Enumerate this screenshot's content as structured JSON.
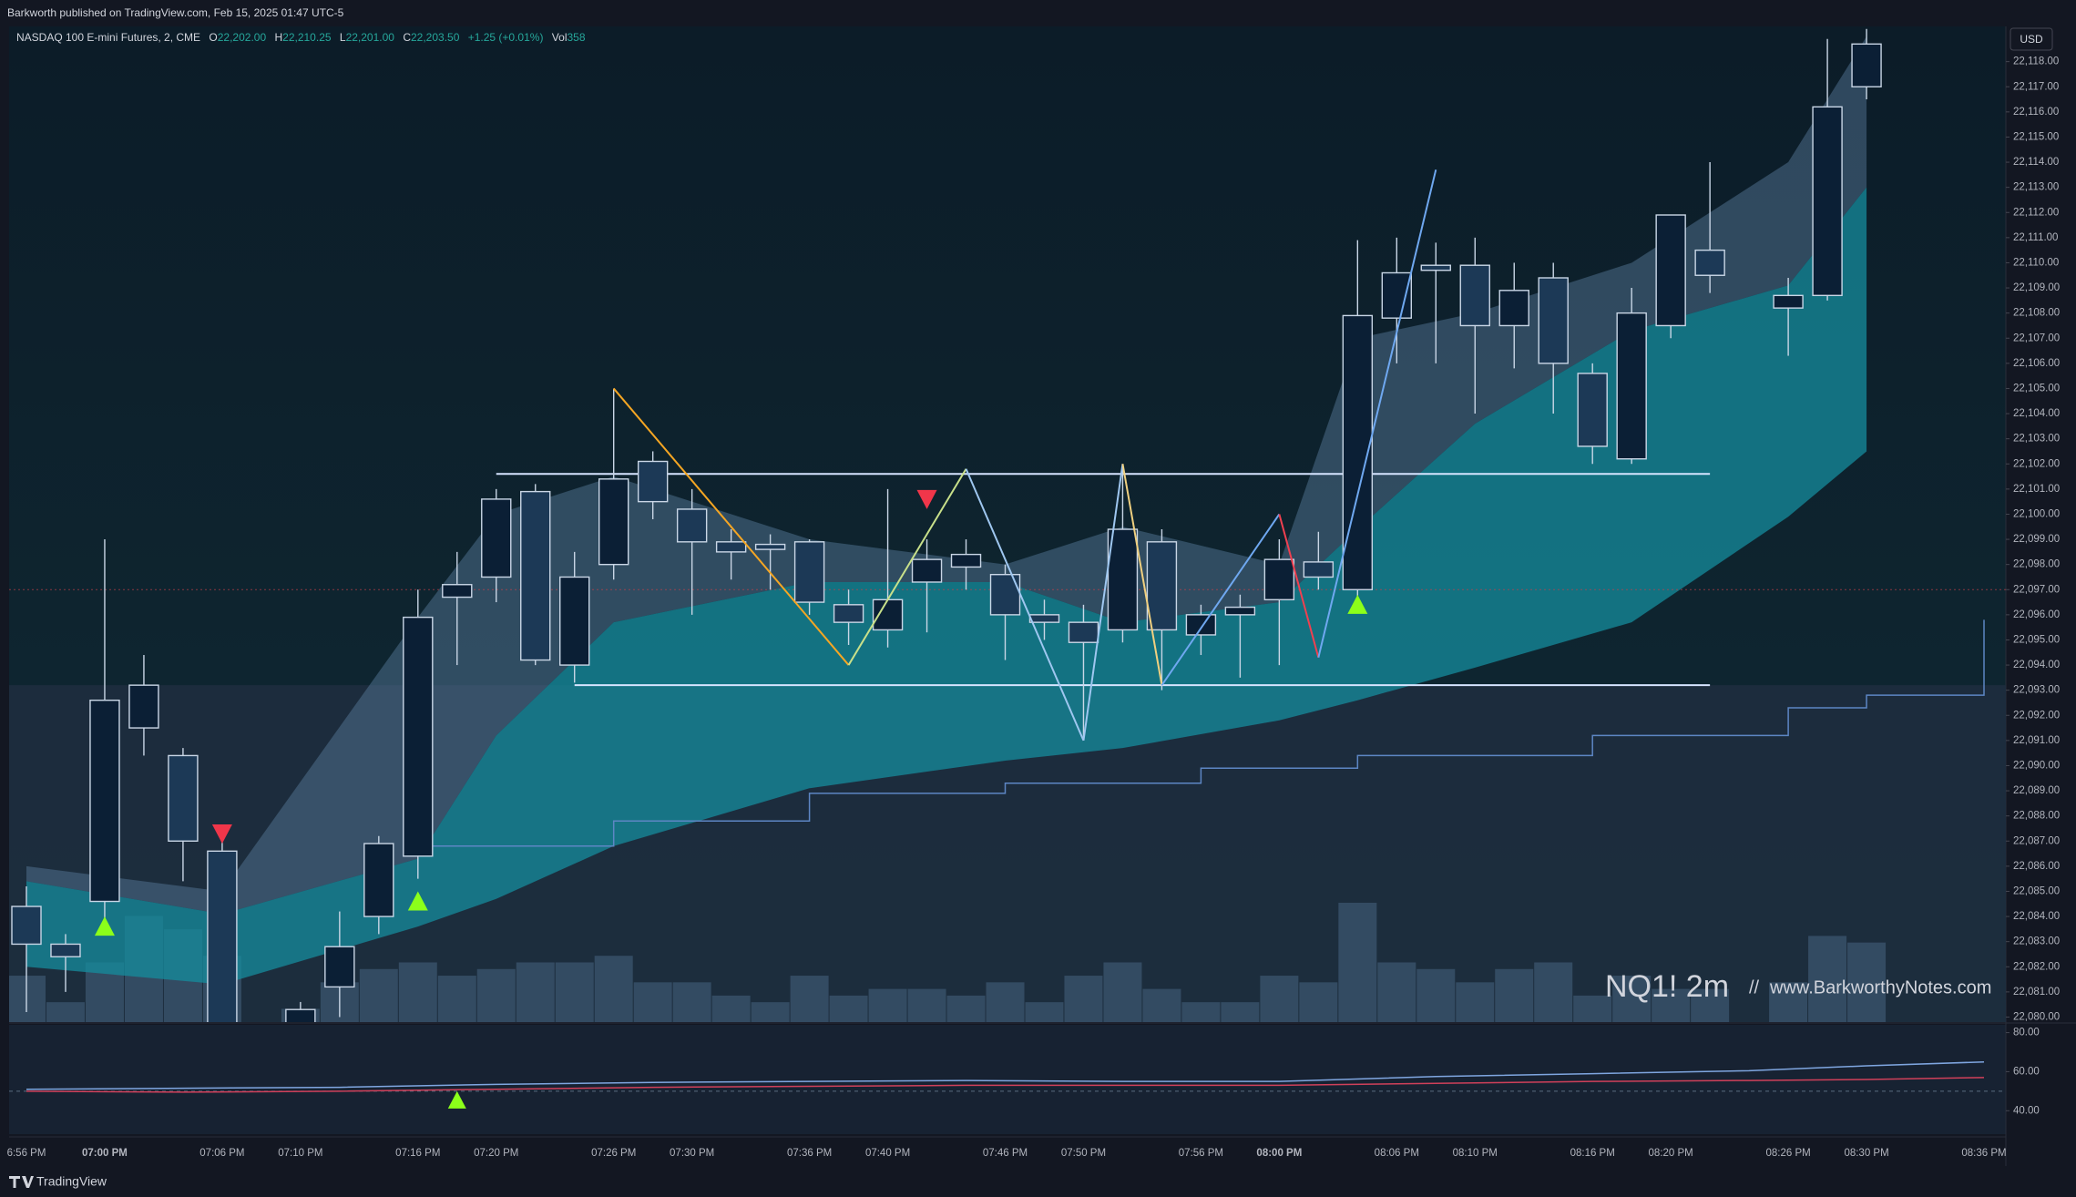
{
  "header": {
    "publisher": "Barkworth published on TradingView.com, Feb 15, 2025 01:47 UTC-5",
    "footer": "TradingView"
  },
  "chart_data": {
    "type": "candlestick",
    "symbol": "NASDAQ 100 E-mini Futures, 2, CME",
    "ohlc": [
      {
        "key": "O",
        "value": "22,202.00"
      },
      {
        "key": "H",
        "value": "22,210.25"
      },
      {
        "key": "L",
        "value": "22,201.00"
      },
      {
        "key": "C",
        "value": "22,203.50"
      }
    ],
    "change": "+1.25 (+0.01%)",
    "vol_key": "Vol",
    "vol_value": "358",
    "currency": "USD",
    "watermark": "NQ1! 2m",
    "separator": "//",
    "website": "www.BarkworthyNotes.com",
    "categories": [
      "6:56 PM",
      null,
      "07:00 PM",
      null,
      null,
      "07:06 PM",
      null,
      "07:10 PM",
      null,
      null,
      "07:16 PM",
      null,
      "07:20 PM",
      null,
      null,
      "07:26 PM",
      null,
      "07:30 PM",
      null,
      null,
      "07:36 PM",
      null,
      "07:40 PM",
      null,
      null,
      "07:46 PM",
      null,
      "07:50 PM",
      null,
      null,
      "07:56 PM",
      null,
      "08:00 PM",
      null,
      null,
      "08:06 PM",
      null,
      "08:10 PM",
      null,
      null,
      "08:16 PM",
      null,
      "08:20 PM",
      null,
      null,
      "08:26 PM",
      null,
      "08:30 PM",
      null,
      null,
      "08:36 PM"
    ],
    "open": [
      22084.4,
      22082.9,
      22084.6,
      22091.5,
      22090.4,
      22086.6,
      null,
      22079,
      22081.2,
      22084.0,
      22086.4,
      22096.7,
      22097.5,
      22100.9,
      22094.0,
      22098.0,
      22102.1,
      22100.2,
      22098.9,
      22098.8,
      22098.9,
      22096.4,
      22095.4,
      22097.3,
      22097.9,
      22097.6,
      22096.0,
      22095.7,
      22095.4,
      22098.9,
      22095.2,
      22096.0,
      22096.6,
      22098.1,
      22097.0,
      22107.8,
      22109.9,
      22109.9,
      22107.5,
      22109.4,
      22105.6,
      22102.2,
      22107.5,
      22110.5,
      null,
      22108.2,
      22108.7,
      22117.0,
      null,
      null,
      null
    ],
    "high": [
      22085.2,
      22083.3,
      22099.0,
      22094.4,
      22090.7,
      22087.6,
      null,
      22080.6,
      22084.2,
      22087.2,
      22097.0,
      22098.5,
      22101.0,
      22101.2,
      22098.5,
      22105.0,
      22102.5,
      22101.0,
      22099.4,
      22099.2,
      22099.0,
      22097.0,
      22101.0,
      22099.0,
      22099.0,
      22098.0,
      22096.6,
      22096.4,
      22101.8,
      22099.4,
      22096.4,
      22096.8,
      22099.0,
      22099.3,
      22110.9,
      22111.0,
      22110.8,
      22111.0,
      22110.0,
      22110.0,
      22106.0,
      22109.0,
      22111.9,
      22114.0,
      null,
      22109.4,
      22118.9,
      22119.3,
      null,
      null,
      null
    ],
    "low": [
      22080.2,
      22081.0,
      22083.6,
      22090.4,
      22085.4,
      22079.0,
      null,
      22078.0,
      22080.0,
      22083.3,
      22085.5,
      22094.0,
      22096.5,
      22094.0,
      22093.3,
      22097.4,
      22099.8,
      22096.0,
      22097.4,
      22097.0,
      22096.0,
      22094.8,
      22094.7,
      22095.3,
      22097.0,
      22094.2,
      22095.0,
      22091.0,
      22094.9,
      22093.0,
      22094.4,
      22093.5,
      22094.0,
      22097.0,
      22096.5,
      22106.0,
      22106.0,
      22104.0,
      22105.8,
      22104.0,
      22102.0,
      22102.0,
      22107.0,
      22108.8,
      null,
      22106.3,
      22108.5,
      22116.5,
      null,
      null,
      null
    ],
    "close": [
      22082.9,
      22082.4,
      22092.6,
      22093.2,
      22087.0,
      22079.5,
      null,
      22080.3,
      22082.8,
      22086.9,
      22095.9,
      22097.2,
      22100.6,
      22094.2,
      22097.5,
      22101.4,
      22100.5,
      22098.9,
      22098.5,
      22098.6,
      22096.5,
      22095.7,
      22096.6,
      22098.2,
      22098.4,
      22096.0,
      22095.7,
      22094.9,
      22099.4,
      22095.4,
      22096.0,
      22096.3,
      22098.2,
      22097.5,
      22107.9,
      22109.6,
      22109.7,
      22107.5,
      22108.9,
      22106.0,
      22102.7,
      22108.0,
      22111.9,
      22109.5,
      null,
      22108.7,
      22116.2,
      22118.7,
      null,
      null,
      null
    ],
    "up_color": "#0b1f35",
    "down_color": "#1c3956",
    "border_color": "#c9d6e6",
    "volume": [
      35,
      15,
      45,
      80,
      70,
      50,
      null,
      10,
      30,
      40,
      45,
      35,
      40,
      45,
      45,
      50,
      30,
      30,
      20,
      15,
      35,
      20,
      25,
      25,
      20,
      30,
      15,
      35,
      45,
      25,
      15,
      15,
      35,
      30,
      90,
      45,
      40,
      30,
      40,
      45,
      20,
      35,
      25,
      25,
      null,
      30,
      65,
      60,
      null,
      null,
      null
    ],
    "volume_color": "#3a526c",
    "ribbon": {
      "x": [
        0,
        5,
        10,
        12,
        15,
        20,
        25,
        28,
        32,
        34,
        37,
        41,
        45,
        47
      ],
      "upper": [
        22085.4,
        22084.1,
        22086.3,
        22091.2,
        22095.7,
        22097.3,
        22097.3,
        22095.7,
        22096.5,
        22099.4,
        22103.6,
        22107.3,
        22109.1,
        22113.0
      ],
      "lower": [
        22082.0,
        22081.3,
        22083.6,
        22084.7,
        22086.8,
        22089.1,
        22090.2,
        22090.7,
        22091.8,
        22092.6,
        22093.9,
        22095.7,
        22099.9,
        22102.5
      ],
      "cloud": [
        22086.0,
        22085.0,
        22095.9,
        22100.0,
        22101.5,
        22099.0,
        22098.0,
        22099.5,
        22098.0,
        22107.0,
        22108.0,
        22110.0,
        22114.0,
        22119.0
      ],
      "color": "#168c9e",
      "cloud_color": "#5b7f9f"
    },
    "vwap": {
      "x": [
        10,
        15,
        20,
        25,
        30,
        34,
        40,
        45,
        47,
        50
      ],
      "values": [
        22086.8,
        22087.8,
        22088.9,
        22089.3,
        22089.9,
        22090.4,
        22091.2,
        22092.3,
        22092.8,
        22095.8
      ],
      "color": "#5d86c4"
    },
    "levels": [
      {
        "value": 22101.6,
        "from": 12,
        "to": 43
      },
      {
        "value": 22093.2,
        "from": 14,
        "to": 43
      }
    ],
    "level_color": "#d6e4ff",
    "price_line": 22097.0,
    "zigzag": {
      "x": [
        15,
        21,
        24,
        27,
        28,
        29,
        32,
        33,
        36
      ],
      "values": [
        22105.0,
        22094.0,
        22101.8,
        22091.0,
        22102.0,
        22093.2,
        22100.0,
        22094.3,
        22113.7
      ],
      "segment_colors": [
        "#f5a623",
        "#c8e08a",
        "#9fc7f0",
        "#9fc7f0",
        "#f0d080",
        "#6fa8f0",
        "#f04050",
        "#6fa8f0"
      ]
    },
    "signals": [
      {
        "x": 2,
        "value": 22083.6,
        "dir": "up"
      },
      {
        "x": 10,
        "value": 22084.6,
        "dir": "up"
      },
      {
        "x": 34,
        "value": 22096.4,
        "dir": "up"
      },
      {
        "x": 5,
        "value": 22087.3,
        "dir": "down"
      },
      {
        "x": 23,
        "value": 22100.6,
        "dir": "down"
      }
    ],
    "up_signal_color": "#8cff1a",
    "down_signal_color": "#f0364a",
    "ylim": [
      22079.8,
      22119.4
    ],
    "yticks": [
      {
        "value": 22080,
        "label": "22,080.00"
      },
      {
        "value": 22081,
        "label": "22,081.00"
      },
      {
        "value": 22082,
        "label": "22,082.00"
      },
      {
        "value": 22083,
        "label": "22,083.00"
      },
      {
        "value": 22084,
        "label": "22,084.00"
      },
      {
        "value": 22085,
        "label": "22,085.00"
      },
      {
        "value": 22086,
        "label": "22,086.00"
      },
      {
        "value": 22087,
        "label": "22,087.00"
      },
      {
        "value": 22088,
        "label": "22,088.00"
      },
      {
        "value": 22089,
        "label": "22,089.00"
      },
      {
        "value": 22090,
        "label": "22,090.00"
      },
      {
        "value": 22091,
        "label": "22,091.00"
      },
      {
        "value": 22092,
        "label": "22,092.00"
      },
      {
        "value": 22093,
        "label": "22,093.00"
      },
      {
        "value": 22094,
        "label": "22,094.00"
      },
      {
        "value": 22095,
        "label": "22,095.00"
      },
      {
        "value": 22096,
        "label": "22,096.00"
      },
      {
        "value": 22097,
        "label": "22,097.00"
      },
      {
        "value": 22098,
        "label": "22,098.00"
      },
      {
        "value": 22099,
        "label": "22,099.00"
      },
      {
        "value": 22100,
        "label": "22,100.00"
      },
      {
        "value": 22101,
        "label": "22,101.00"
      },
      {
        "value": 22102,
        "label": "22,102.00"
      },
      {
        "value": 22103,
        "label": "22,103.00"
      },
      {
        "value": 22104,
        "label": "22,104.00"
      },
      {
        "value": 22105,
        "label": "22,105.00"
      },
      {
        "value": 22106,
        "label": "22,106.00"
      },
      {
        "value": 22107,
        "label": "22,107.00"
      },
      {
        "value": 22108,
        "label": "22,108.00"
      },
      {
        "value": 22109,
        "label": "22,109.00"
      },
      {
        "value": 22110,
        "label": "22,110.00"
      },
      {
        "value": 22111,
        "label": "22,111.00"
      },
      {
        "value": 22112,
        "label": "22,112.00"
      },
      {
        "value": 22113,
        "label": "22,113.00"
      },
      {
        "value": 22114,
        "label": "22,114.00"
      },
      {
        "value": 22115,
        "label": "22,115.00"
      },
      {
        "value": 22116,
        "label": "22,116.00"
      },
      {
        "value": 22117,
        "label": "22,117.00"
      },
      {
        "value": 22118,
        "label": "22,118.00"
      }
    ],
    "oscillator": {
      "x": [
        0,
        4,
        8,
        12,
        16,
        20,
        24,
        28,
        32,
        36,
        40,
        44,
        47,
        50
      ],
      "series": [
        {
          "color": "#7fa6e0",
          "values": [
            51,
            51.5,
            52,
            53.5,
            54.5,
            55,
            55.5,
            55,
            55,
            57.5,
            59,
            60.5,
            63,
            65
          ]
        },
        {
          "color": "#d0405a",
          "values": [
            50,
            49.5,
            50,
            51,
            52,
            52.5,
            53,
            53,
            53,
            54,
            55,
            55.5,
            56,
            57
          ]
        }
      ],
      "level": 50,
      "signals": [
        {
          "x": 11,
          "value": 45.3
        }
      ],
      "ylim": [
        28,
        84
      ],
      "yticks": [
        {
          "value": 80,
          "label": "80.00"
        },
        {
          "value": 60,
          "label": "60.00"
        },
        {
          "value": 40,
          "label": "40.00"
        }
      ]
    }
  }
}
